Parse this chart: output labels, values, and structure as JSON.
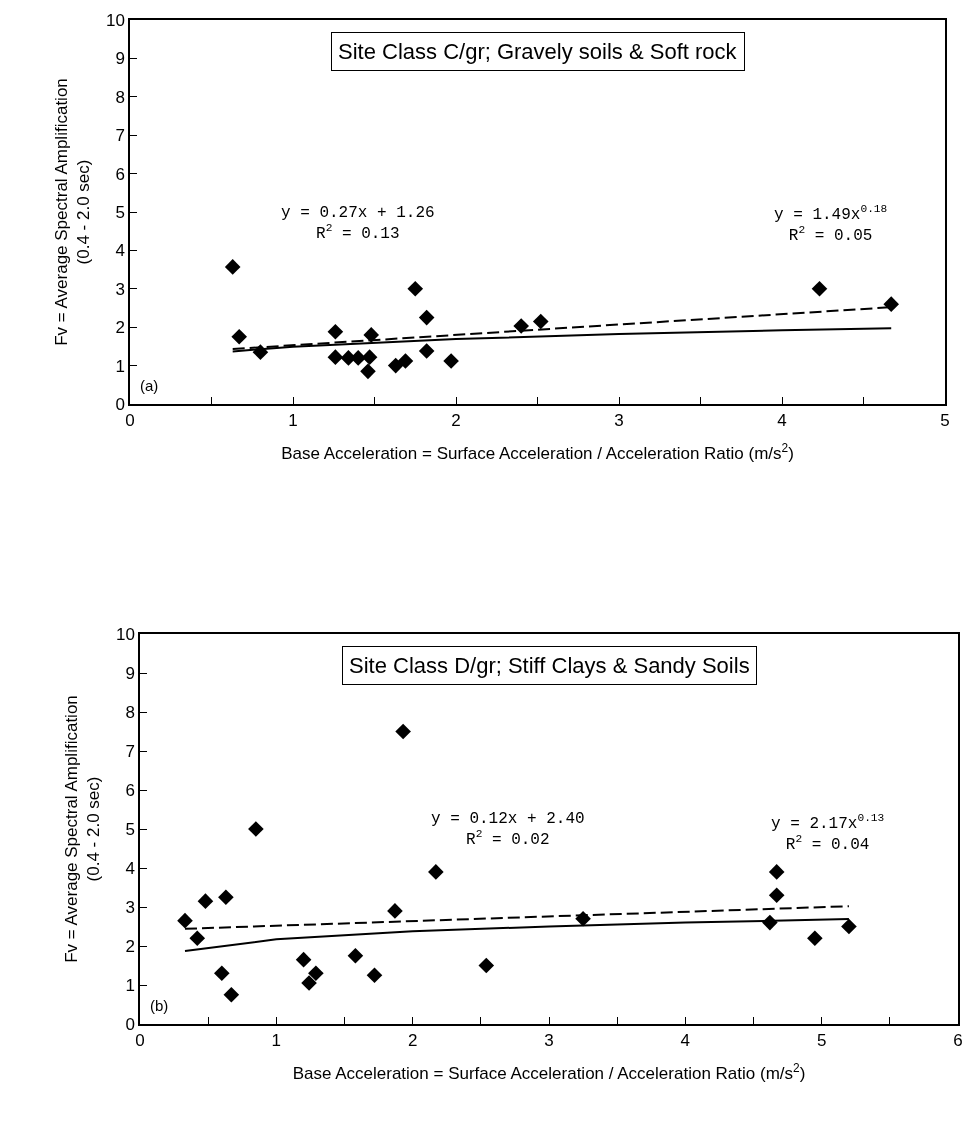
{
  "chart_data": [
    {
      "type": "scatter",
      "title": "Site Class C/gr; Gravely soils & Soft rock",
      "xlabel": "Base Acceleration = Surface Acceleration / Acceleration Ratio (m/s$^{2}$)",
      "ylabel": "Fv = Average Spectral Amplification\n(0.4 - 2.0 sec)",
      "xlim": [
        0,
        5
      ],
      "xticks": [
        0,
        {
          "value": 0.5,
          "label": null
        },
        1,
        {
          "value": 1.5,
          "label": null
        },
        2,
        {
          "value": 2.5,
          "label": null
        },
        3,
        {
          "value": 3.5,
          "label": null
        },
        4,
        {
          "value": 4.5,
          "label": null
        },
        5
      ],
      "ylim": [
        0,
        10
      ],
      "yticks": [
        0,
        1,
        2,
        3,
        4,
        5,
        6,
        7,
        8,
        9,
        10
      ],
      "grid": false,
      "series": [
        {
          "type": "scatter",
          "color": "#000000",
          "marker": "diamond",
          "x": [
            0.63,
            0.67,
            0.8,
            1.26,
            1.26,
            1.34,
            1.4,
            1.45,
            1.46,
            1.47,
            1.48,
            1.63,
            1.69,
            1.75,
            1.82,
            1.82,
            1.97,
            2.4,
            2.52,
            4.23,
            4.67
          ],
          "values": [
            3.57,
            1.75,
            1.35,
            1.88,
            1.22,
            1.2,
            1.2,
            null,
            0.85,
            1.22,
            1.8,
            1.0,
            1.12,
            3.0,
            2.25,
            1.38,
            1.12,
            2.03,
            2.15,
            3.0,
            2.6
          ]
        },
        {
          "type": "line",
          "color": "#000000",
          "marker": "none",
          "line_style": "dashed",
          "x": [
            0.63,
            4.67
          ],
          "values": [
            1.43,
            2.52
          ]
        },
        {
          "type": "line",
          "color": "#000000",
          "marker": "none",
          "line_style": "solid",
          "x": [
            0.63,
            1,
            2,
            3,
            4,
            4.67
          ],
          "values": [
            1.37,
            1.49,
            1.69,
            1.82,
            1.92,
            1.97
          ]
        }
      ],
      "annotations": [
        "y = 0.27x + 1.26\nR$^{2}$ = 0.13",
        "y = 1.49x$^{0.18}$\nR$^{2}$ = 0.05",
        "(a)"
      ]
    },
    {
      "type": "scatter",
      "title": "Site Class D/gr; Stiff Clays & Sandy Soils",
      "xlabel": "Base Acceleration = Surface Acceleration / Acceleration Ratio (m/s$^{2}$)",
      "ylabel": "Fv = Average Spectral Amplification\n(0.4 - 2.0 sec)",
      "xlim": [
        0,
        6
      ],
      "xticks": [
        0,
        {
          "value": 0.5,
          "label": null
        },
        1,
        {
          "value": 1.5,
          "label": null
        },
        2,
        {
          "value": 2.5,
          "label": null
        },
        3,
        {
          "value": 3.5,
          "label": null
        },
        4,
        {
          "value": 4.5,
          "label": null
        },
        5,
        {
          "value": 5.5,
          "label": null
        },
        6
      ],
      "ylim": [
        0,
        10
      ],
      "yticks": [
        0,
        1,
        2,
        3,
        4,
        5,
        6,
        7,
        8,
        9,
        10
      ],
      "grid": false,
      "series": [
        {
          "type": "scatter",
          "color": "#000000",
          "marker": "diamond",
          "x": [
            0.33,
            0.42,
            0.48,
            0.6,
            0.63,
            0.67,
            0.85,
            1.2,
            1.24,
            1.29,
            1.58,
            1.72,
            1.87,
            1.93,
            2.17,
            2.54,
            3.25,
            4.62,
            4.67,
            4.67,
            4.95,
            5.2
          ],
          "values": [
            2.65,
            2.2,
            3.15,
            1.3,
            3.25,
            0.75,
            5.0,
            1.65,
            1.05,
            1.3,
            1.75,
            1.25,
            2.9,
            7.5,
            3.9,
            1.5,
            2.7,
            2.6,
            3.3,
            3.9,
            2.2,
            2.5
          ]
        },
        {
          "type": "line",
          "color": "#000000",
          "marker": "none",
          "line_style": "dashed",
          "x": [
            0.33,
            5.2
          ],
          "values": [
            2.44,
            3.02
          ]
        },
        {
          "type": "line",
          "color": "#000000",
          "marker": "none",
          "line_style": "solid",
          "x": [
            0.33,
            1,
            2,
            3,
            4,
            5.2
          ],
          "values": [
            1.87,
            2.17,
            2.38,
            2.5,
            2.6,
            2.69
          ]
        }
      ],
      "annotations": [
        "y = 0.12x + 2.40\nR$^{2}$ = 0.02",
        "y = 2.17x$^{0.13}$\nR$^{2}$ = 0.04",
        "(b)"
      ]
    }
  ]
}
